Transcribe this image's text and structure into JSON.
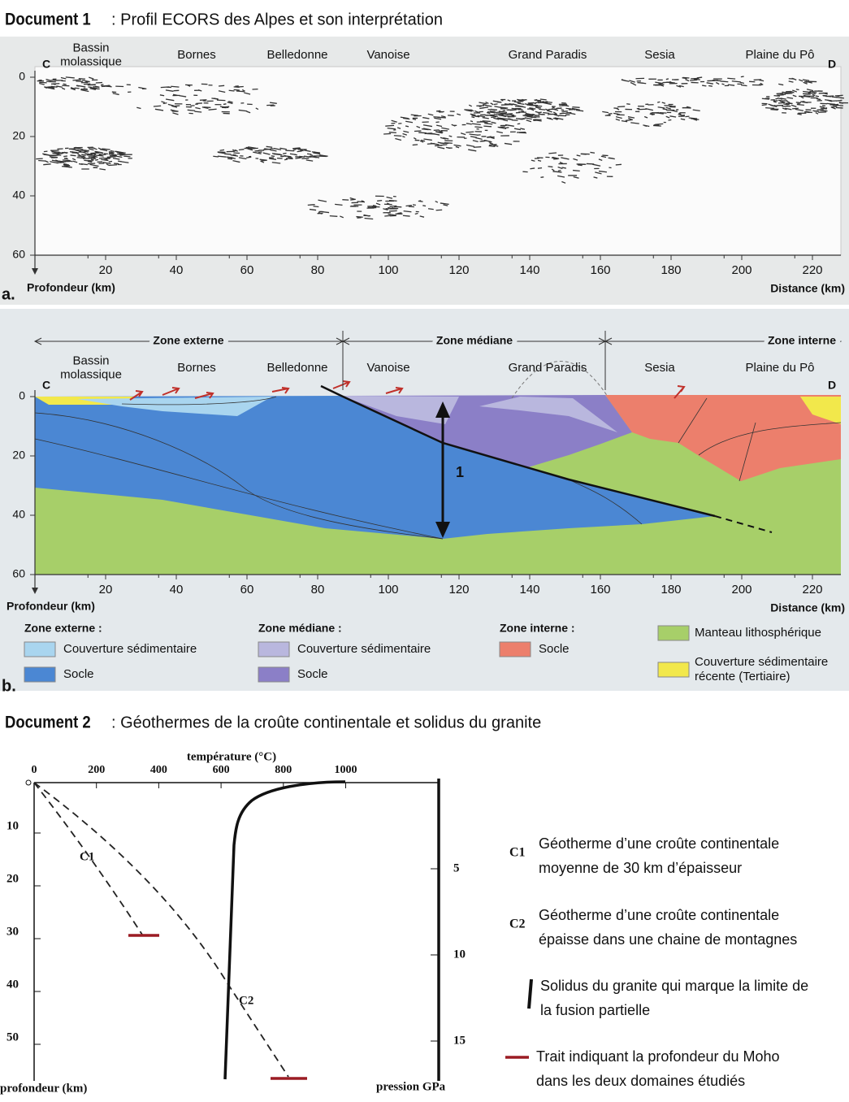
{
  "document_1": {
    "label": "Document 1",
    "title": ": Profil ECORS des Alpes et son interprétation",
    "profile_a": {
      "panel": "a.",
      "start": "C",
      "end": "D",
      "places": [
        [
          "Bassin",
          "molassique"
        ],
        [
          "Bornes"
        ],
        [
          "Belledonne"
        ],
        [
          "Vanoise"
        ],
        [
          "Grand Paradis"
        ],
        [
          "Sesia"
        ],
        [
          "Plaine du Pô"
        ]
      ],
      "depth_ticks": [
        0,
        20,
        40,
        60
      ],
      "distance_ticks": [
        20,
        40,
        60,
        80,
        100,
        120,
        140,
        160,
        180,
        200,
        220
      ],
      "y_label": "Profondeur (km)",
      "x_label": "Distance (km)"
    },
    "interpretation_b": {
      "panel": "b.",
      "start": "C",
      "end": "D",
      "zones": [
        "Zone externe",
        "Zone médiane",
        "Zone interne"
      ],
      "places": [
        [
          "Bassin",
          "molassique"
        ],
        [
          "Bornes"
        ],
        [
          "Belledonne"
        ],
        [
          "Vanoise"
        ],
        [
          "Grand Paradis"
        ],
        [
          "Sesia"
        ],
        [
          "Plaine du Pô"
        ]
      ],
      "arrow_label": "1",
      "depth_ticks": [
        0,
        20,
        40,
        60
      ],
      "distance_ticks": [
        20,
        40,
        60,
        80,
        100,
        120,
        140,
        160,
        180,
        200,
        220
      ],
      "y_label": "Profondeur (km)",
      "x_label": "Distance (km)",
      "legend": [
        {
          "heading": "Zone externe :",
          "items": [
            {
              "label": [
                "Couverture sédimentaire"
              ],
              "color": "#a9d5ef"
            },
            {
              "label": [
                "Socle"
              ],
              "color": "#4b87d3"
            }
          ]
        },
        {
          "heading": "Zone médiane :",
          "items": [
            {
              "label": [
                "Couverture sédimentaire"
              ],
              "color": "#b9b7de"
            },
            {
              "label": [
                "Socle"
              ],
              "color": "#8b7fc7"
            }
          ]
        },
        {
          "heading": "Zone interne :",
          "items": [
            {
              "label": [
                "Socle"
              ],
              "color": "#ec7f6c"
            }
          ]
        },
        {
          "items": [
            {
              "label": [
                "Manteau lithosphérique"
              ],
              "color": "#a7cf69"
            },
            {
              "label": [
                "Couverture sédimentaire",
                "récente (Tertiaire)"
              ],
              "color": "#f2e84b"
            }
          ]
        }
      ]
    }
  },
  "document_2": {
    "label": "Document 2",
    "title": ": Géothermes de la croûte continentale et solidus du granite",
    "chart": {
      "temperature_label": "température (°C)",
      "temperature_ticks": [
        0,
        200,
        400,
        600,
        800,
        1000
      ],
      "depth_ticks": [
        10,
        20,
        30,
        40,
        50
      ],
      "pressure_ticks": [
        5,
        10,
        15
      ],
      "depth_label": "profondeur (km)",
      "pressure_label": "pression GPa",
      "curve_labels": [
        "C1",
        "C2"
      ]
    },
    "legend": [
      {
        "symbol": "C1",
        "lines": [
          "Géotherme d’une croûte continentale",
          "moyenne de 30 km d’épaisseur"
        ]
      },
      {
        "symbol": "C2",
        "lines": [
          "Géotherme d’une croûte continentale",
          "épaisse dans une chaine de montagnes"
        ]
      },
      {
        "lines": [
          "Solidus du granite qui marque la limite de",
          "la fusion partielle"
        ]
      },
      {
        "lines": [
          "Trait indiquant la profondeur du Moho",
          "dans les deux domaines étudiés"
        ]
      }
    ]
  }
}
